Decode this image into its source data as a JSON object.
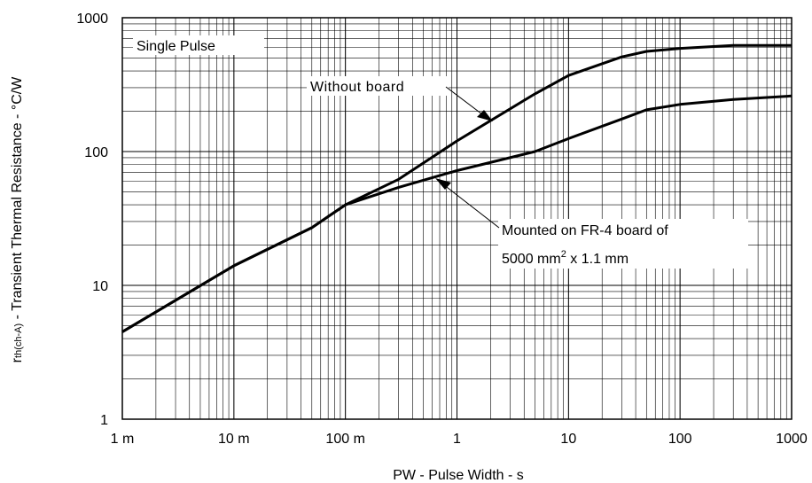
{
  "chart_data": {
    "type": "line",
    "title": "",
    "xlabel": "PW - Pulse Width - s",
    "ylabel_parts": [
      "r",
      "th(ch-A)",
      " - Transient Thermal Resistance - °C/W"
    ],
    "x_scale": "log",
    "y_scale": "log",
    "xlim": [
      0.001,
      1000
    ],
    "ylim": [
      1,
      1000
    ],
    "grid": true,
    "x_ticks": [
      {
        "value": 0.001,
        "label": "1 m"
      },
      {
        "value": 0.01,
        "label": "10 m"
      },
      {
        "value": 0.1,
        "label": "100 m"
      },
      {
        "value": 1,
        "label": "1"
      },
      {
        "value": 10,
        "label": "10"
      },
      {
        "value": 100,
        "label": "100"
      },
      {
        "value": 1000,
        "label": "1000"
      }
    ],
    "y_ticks": [
      {
        "value": 1,
        "label": "1"
      },
      {
        "value": 10,
        "label": "10"
      },
      {
        "value": 100,
        "label": "100"
      },
      {
        "value": 1000,
        "label": "1000"
      }
    ],
    "series": [
      {
        "name": "Without board",
        "x": [
          0.001,
          0.01,
          0.05,
          0.1,
          0.3,
          1,
          5,
          10,
          30,
          50,
          100,
          300,
          1000
        ],
        "y": [
          4.5,
          14,
          27,
          40,
          62,
          120,
          270,
          370,
          510,
          560,
          590,
          620,
          620
        ]
      },
      {
        "name": "Mounted on FR-4 board of 5000 mm2 x 1.1 mm",
        "x": [
          0.001,
          0.01,
          0.05,
          0.1,
          0.3,
          1,
          5,
          10,
          30,
          50,
          100,
          300,
          1000
        ],
        "y": [
          4.5,
          14,
          27,
          40,
          54,
          72,
          100,
          125,
          175,
          205,
          225,
          245,
          260
        ]
      }
    ],
    "annotations": {
      "single_pulse": "Single Pulse",
      "without_board": "Without board",
      "mounted_line1": "Mounted on FR-4 board of",
      "mounted_line2_a": "5000 mm",
      "mounted_line2_sup": "2",
      "mounted_line2_b": " x 1.1 mm"
    }
  }
}
